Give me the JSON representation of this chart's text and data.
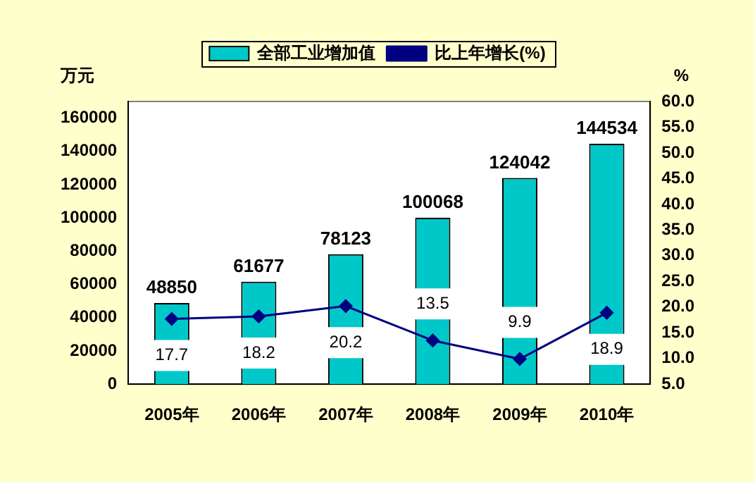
{
  "chart_data": {
    "type": "bar",
    "ylabel": "万元",
    "y2label": "%",
    "categories": [
      "2005年",
      "2006年",
      "2007年",
      "2008年",
      "2009年",
      "2010年"
    ],
    "series": [
      {
        "name": "全部工业增加值",
        "color": "#00c8c8",
        "values": [
          48850,
          61677,
          78123,
          100068,
          124042,
          144534
        ]
      },
      {
        "name": "比上年增长(%)",
        "type": "line",
        "axis": "y2",
        "color": "#000080",
        "marker": "diamond",
        "values": [
          17.7,
          18.2,
          20.2,
          13.5,
          9.9,
          18.9
        ]
      }
    ],
    "ylim": [
      0,
      170000
    ],
    "yticks": [
      0,
      20000,
      40000,
      60000,
      80000,
      100000,
      120000,
      140000,
      160000
    ],
    "y2lim": [
      5,
      60
    ],
    "y2ticks": [
      {
        "value": 5,
        "label": "5.0"
      },
      {
        "value": 10,
        "label": "10.0"
      },
      {
        "value": 15,
        "label": "15.0"
      },
      {
        "value": 20,
        "label": "20.0"
      },
      {
        "value": 25,
        "label": "25.0"
      },
      {
        "value": 30,
        "label": "30.0"
      },
      {
        "value": 35,
        "label": "35.0"
      },
      {
        "value": 40,
        "label": "40.0"
      },
      {
        "value": 45,
        "label": "45.0"
      },
      {
        "value": 50,
        "label": "50.0"
      },
      {
        "value": 55,
        "label": "55.0"
      },
      {
        "value": 60,
        "label": "60.0"
      }
    ],
    "data_labels": true,
    "legend": "top",
    "grid": false
  }
}
